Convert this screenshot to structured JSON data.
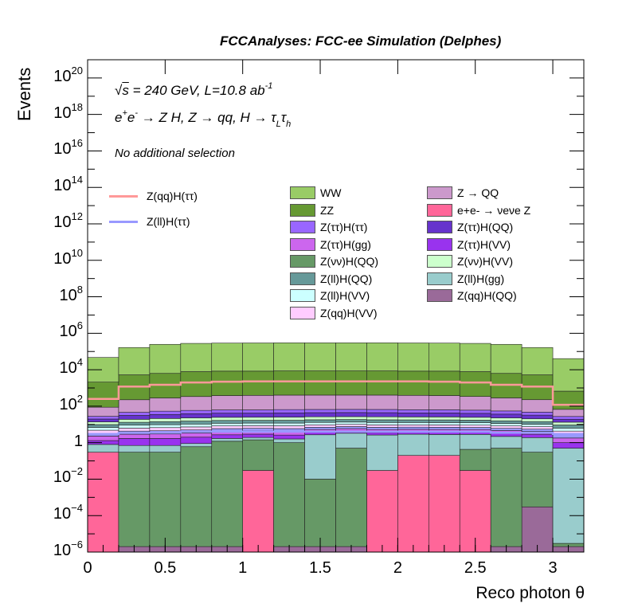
{
  "title": "FCCAnalyses: FCC-ee Simulation (Delphes)",
  "annotations": {
    "energy_prefix": "s",
    "energy_text": " = 240 GeV, L=10.8 ab",
    "energy_exp": "-1",
    "process_html_parts": [
      "e",
      "+",
      "e",
      "-",
      " → Z H, Z  → qq, H  → τ",
      "L",
      "τ",
      "h"
    ],
    "selection": "No additional selection"
  },
  "chart_data": {
    "type": "bar",
    "stacked": true,
    "log_y": true,
    "xlabel": "Reco photon θ",
    "ylabel": "Events",
    "xlim": [
      0,
      3.2
    ],
    "ylim": [
      1e-06,
      1e+21
    ],
    "bin_edges": [
      0,
      0.2,
      0.4,
      0.6,
      0.8,
      1.0,
      1.2,
      1.4,
      1.6,
      1.8,
      2.0,
      2.2,
      2.4,
      2.6,
      2.8,
      3.0,
      3.2
    ],
    "x_ticks": [
      {
        "v": 0,
        "label": "0"
      },
      {
        "v": 0.5,
        "label": "0.5"
      },
      {
        "v": 1,
        "label": "1"
      },
      {
        "v": 1.5,
        "label": "1.5"
      },
      {
        "v": 2,
        "label": "2"
      },
      {
        "v": 2.5,
        "label": "2.5"
      },
      {
        "v": 3,
        "label": "3"
      }
    ],
    "y_ticks": [
      {
        "exp": -6,
        "label": "10",
        "sup": "−6"
      },
      {
        "exp": -4,
        "label": "10",
        "sup": "−4"
      },
      {
        "exp": -2,
        "label": "10",
        "sup": "−2"
      },
      {
        "exp": 0,
        "label": "1",
        "sup": ""
      },
      {
        "exp": 2,
        "label": "10",
        "sup": "2"
      },
      {
        "exp": 4,
        "label": "10",
        "sup": "4"
      },
      {
        "exp": 6,
        "label": "10",
        "sup": "6"
      },
      {
        "exp": 8,
        "label": "10",
        "sup": "8"
      },
      {
        "exp": 10,
        "label": "10",
        "sup": "10"
      },
      {
        "exp": 12,
        "label": "10",
        "sup": "12"
      },
      {
        "exp": 14,
        "label": "10",
        "sup": "14"
      },
      {
        "exp": 16,
        "label": "10",
        "sup": "16"
      },
      {
        "exp": 18,
        "label": "10",
        "sup": "18"
      },
      {
        "exp": 20,
        "label": "10",
        "sup": "20"
      }
    ],
    "stack_series": [
      {
        "name": "e+e- → νeνe Z",
        "color": "#ff6699",
        "values": [
          0.3,
          1e-06,
          1e-06,
          1e-06,
          1e-06,
          0.03,
          1e-06,
          1e-06,
          1e-06,
          0.03,
          0.2,
          0.2,
          0.03,
          1e-06,
          1e-06,
          1e-06
        ]
      },
      {
        "name": "Z(qq)H(QQ)",
        "color": "#9a6a99",
        "values": [
          1e-06,
          1e-06,
          1e-06,
          1e-06,
          1e-06,
          1e-06,
          1e-06,
          1e-06,
          1e-06,
          1e-06,
          1e-06,
          1e-06,
          1e-06,
          1e-06,
          0.0003,
          1e-06
        ]
      },
      {
        "name": "Z(νν)H(QQ)",
        "color": "#669966",
        "values": [
          1e-06,
          0.3,
          0.3,
          0.6,
          1.2,
          1.4,
          1.0,
          0.01,
          0.5,
          1e-06,
          1e-06,
          1e-06,
          0.4,
          0.5,
          0.3,
          1e-06
        ]
      },
      {
        "name": "Z(ll)H(gg)",
        "color": "#99cccc",
        "values": [
          0.5,
          0.4,
          0.4,
          0.3,
          0.5,
          0.5,
          0.6,
          2.7,
          2.8,
          2.6,
          2.7,
          2.6,
          2.4,
          1.7,
          1.6,
          0.5
        ]
      },
      {
        "name": "Z(ττ)H(VV)",
        "color": "#9933ee",
        "values": [
          0.5,
          1.0,
          1.0,
          1.1,
          1.0,
          1.0,
          1.0,
          1.0,
          1.0,
          1.0,
          1.0,
          1.0,
          1.0,
          1.0,
          1.0,
          0.5
        ]
      },
      {
        "name": "Z(ττ)H(gg)",
        "color": "#cc66ee",
        "values": [
          1.0,
          1.2,
          1.3,
          1.4,
          1.5,
          1.5,
          1.6,
          1.6,
          1.6,
          1.6,
          1.5,
          1.5,
          1.4,
          1.4,
          1.2,
          0.8
        ]
      },
      {
        "name": "Z(ll)H(ττ)",
        "color": "#9999ff",
        "values": [
          1.0,
          1.4,
          1.5,
          1.6,
          1.7,
          1.7,
          1.7,
          1.7,
          1.7,
          1.7,
          1.7,
          1.7,
          1.6,
          1.5,
          1.4,
          1.0
        ]
      },
      {
        "name": "Z(qq)H(VV)",
        "color": "#ffccff",
        "values": [
          1.5,
          2.0,
          2.2,
          2.3,
          2.4,
          2.4,
          2.5,
          2.5,
          2.5,
          2.5,
          2.4,
          2.4,
          2.3,
          2.2,
          2.0,
          1.5
        ]
      },
      {
        "name": "Z(ll)H(VV)",
        "color": "#ccffff",
        "values": [
          2.0,
          2.8,
          3.0,
          3.2,
          3.3,
          3.3,
          3.4,
          3.4,
          3.4,
          3.4,
          3.3,
          3.3,
          3.2,
          3.0,
          2.8,
          2.0
        ]
      },
      {
        "name": "Z(ll)H(QQ)",
        "color": "#669999",
        "values": [
          3.0,
          4.0,
          4.5,
          4.8,
          5.0,
          5.0,
          5.1,
          5.1,
          5.1,
          5.1,
          5.0,
          5.0,
          4.8,
          4.5,
          4.0,
          3.0
        ]
      },
      {
        "name": "Z(νν)H(VV)",
        "color": "#ccffcc",
        "values": [
          4.0,
          6.0,
          7.0,
          7.5,
          8.0,
          8.0,
          8.2,
          8.2,
          8.2,
          8.2,
          8.0,
          8.0,
          7.5,
          7.0,
          6.0,
          4.0
        ]
      },
      {
        "name": "Z(ττ)H(QQ)",
        "color": "#6633cc",
        "values": [
          6.0,
          12,
          14,
          16,
          17,
          17,
          18,
          18,
          18,
          18,
          17,
          17,
          16,
          14,
          12,
          6.0
        ]
      },
      {
        "name": "Z(ττ)H(ττ)",
        "color": "#9966ff",
        "values": [
          8.0,
          15,
          18,
          20,
          21,
          21,
          22,
          22,
          22,
          22,
          21,
          21,
          20,
          18,
          15,
          8.0
        ]
      },
      {
        "name": "Z → QQ",
        "color": "#cc99cc",
        "values": [
          60,
          180,
          230,
          280,
          320,
          330,
          340,
          340,
          340,
          340,
          330,
          320,
          280,
          230,
          180,
          40
        ]
      },
      {
        "name": "ZZ",
        "color": "#669933",
        "values": [
          2000,
          5000,
          6000,
          7500,
          8000,
          8000,
          8200,
          8200,
          8200,
          8200,
          8000,
          8000,
          7500,
          6000,
          5000,
          600
        ]
      },
      {
        "name": "WW",
        "color": "#99cc66",
        "values": [
          45000,
          160000,
          240000,
          270000,
          280000,
          285000,
          290000,
          290000,
          290000,
          290000,
          285000,
          280000,
          270000,
          240000,
          160000,
          40000
        ]
      }
    ],
    "line_series": [
      {
        "name": "Z(qq)H(ττ)",
        "color": "#ff9999",
        "values": [
          250,
          1200,
          1500,
          2000,
          2200,
          2300,
          2300,
          2300,
          2300,
          2300,
          2300,
          2200,
          2000,
          1500,
          1200,
          120
        ]
      },
      {
        "name": "Z(ll)H(ττ)",
        "color": "#9999ff",
        "values": [
          3,
          3.5,
          3.5,
          4,
          4,
          4,
          4,
          4,
          4,
          4,
          4,
          4,
          4,
          3.5,
          3.5,
          3
        ]
      }
    ],
    "legend_left": [
      "Z(qq)H(ττ)",
      "Z(ll)H(ττ)"
    ],
    "legend_mid": [
      "WW",
      "ZZ",
      "Z(ττ)H(ττ)",
      "Z(ττ)H(gg)",
      "Z(νν)H(QQ)",
      "Z(ll)H(QQ)",
      "Z(ll)H(VV)",
      "Z(qq)H(VV)"
    ],
    "legend_right": [
      "Z → QQ",
      "e+e- → νeνe Z",
      "Z(ττ)H(QQ)",
      "Z(ττ)H(VV)",
      "Z(νν)H(VV)",
      "Z(ll)H(gg)",
      "Z(qq)H(QQ)"
    ]
  }
}
